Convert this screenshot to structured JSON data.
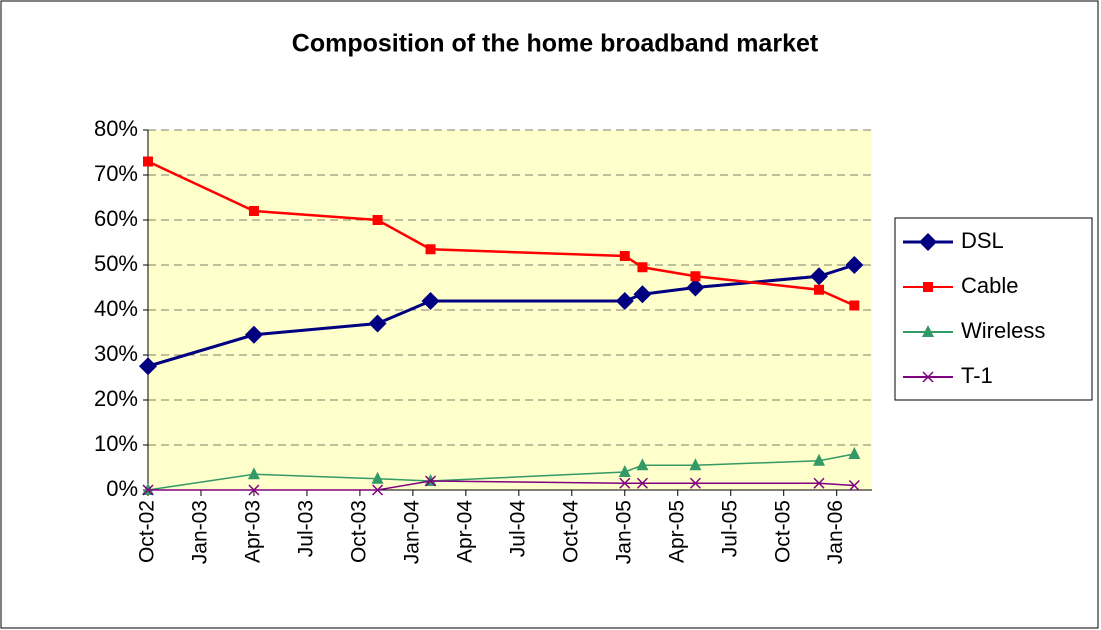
{
  "chart_data": {
    "type": "line",
    "title": "Composition of the home broadband market",
    "x": [
      "2002-10",
      "2003-04",
      "2003-11",
      "2004-02",
      "2005-01",
      "2005-02",
      "2005-05",
      "2005-12",
      "2006-02"
    ],
    "series": [
      {
        "name": "DSL",
        "color": "#000080",
        "marker": "diamond",
        "values": [
          27.5,
          34.5,
          37,
          42,
          42,
          43.5,
          45,
          47.5,
          50
        ]
      },
      {
        "name": "Cable",
        "color": "#ff0000",
        "marker": "square",
        "values": [
          73,
          62,
          60,
          53.5,
          52,
          49.5,
          47.5,
          44.5,
          41
        ]
      },
      {
        "name": "Wireless",
        "color": "#339966",
        "marker": "triangle",
        "values": [
          0,
          3.5,
          2.5,
          2,
          4,
          5.5,
          5.5,
          6.5,
          8
        ]
      },
      {
        "name": "T-1",
        "color": "#800080",
        "marker": "x",
        "values": [
          0,
          0,
          0,
          2,
          1.5,
          1.5,
          1.5,
          1.5,
          1
        ]
      }
    ],
    "xlim": [
      "2002-10",
      "2006-03"
    ],
    "xticks": [
      {
        "value": "2002-10",
        "label": "Oct-02"
      },
      {
        "value": "2003-01",
        "label": "Jan-03"
      },
      {
        "value": "2003-04",
        "label": "Apr-03"
      },
      {
        "value": "2003-07",
        "label": "Jul-03"
      },
      {
        "value": "2003-10",
        "label": "Oct-03"
      },
      {
        "value": "2004-01",
        "label": "Jan-04"
      },
      {
        "value": "2004-04",
        "label": "Apr-04"
      },
      {
        "value": "2004-07",
        "label": "Jul-04"
      },
      {
        "value": "2004-10",
        "label": "Oct-04"
      },
      {
        "value": "2005-01",
        "label": "Jan-05"
      },
      {
        "value": "2005-04",
        "label": "Apr-05"
      },
      {
        "value": "2005-07",
        "label": "Jul-05"
      },
      {
        "value": "2005-10",
        "label": "Oct-05"
      },
      {
        "value": "2006-01",
        "label": "Jan-06"
      }
    ],
    "ylim": [
      0,
      80
    ],
    "yticks": [
      {
        "value": 0,
        "label": "0%"
      },
      {
        "value": 10,
        "label": "10%"
      },
      {
        "value": 20,
        "label": "20%"
      },
      {
        "value": 30,
        "label": "30%"
      },
      {
        "value": 40,
        "label": "40%"
      },
      {
        "value": 50,
        "label": "50%"
      },
      {
        "value": 60,
        "label": "60%"
      },
      {
        "value": 70,
        "label": "70%"
      },
      {
        "value": 80,
        "label": "80%"
      }
    ],
    "grid": true,
    "legend": "right",
    "plot_background": "#ffffcc"
  }
}
